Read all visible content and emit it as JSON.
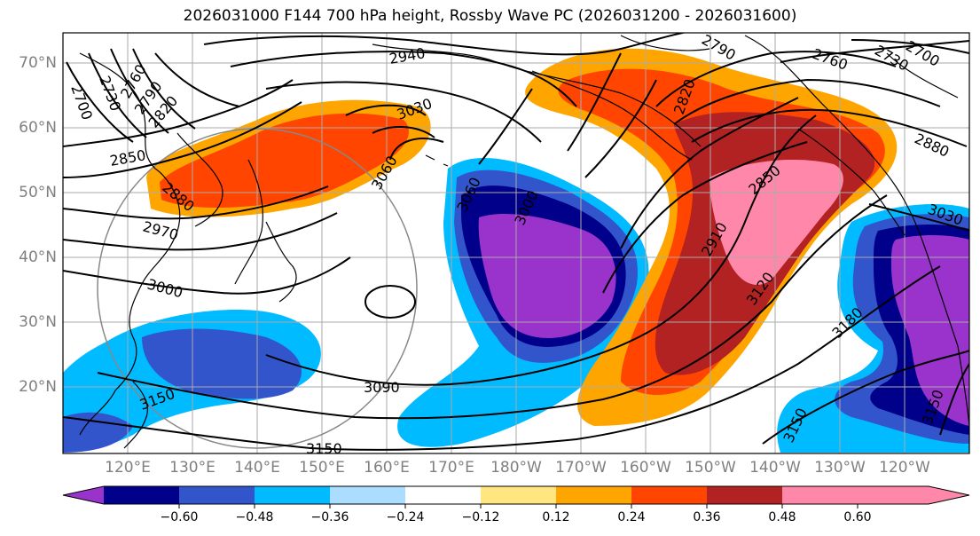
{
  "title": "2026031000 F144 700 hPa height, Rossby Wave PC (2026031200 - 2026031600)",
  "lat_labels": [
    "70°N",
    "60°N",
    "50°N",
    "40°N",
    "30°N",
    "20°N"
  ],
  "lon_labels": [
    "120°E",
    "130°E",
    "140°E",
    "150°E",
    "160°E",
    "170°E",
    "180°W",
    "170°W",
    "160°W",
    "150°W",
    "140°W",
    "130°W",
    "120°W"
  ],
  "contour_labels": [
    "2700",
    "2730",
    "2760",
    "2790",
    "2820",
    "2850",
    "2880",
    "2970",
    "3000",
    "3060",
    "3030",
    "2940",
    "2790",
    "2760",
    "2730",
    "2700",
    "2820",
    "2880",
    "3030",
    "3090",
    "3150",
    "3150",
    "3150",
    "3180",
    "3120",
    "2910",
    "2850",
    "3000",
    "3060",
    "3150"
  ],
  "colorbar": {
    "ticks": [
      "−0.60",
      "−0.48",
      "−0.36",
      "−0.24",
      "−0.12",
      "0.12",
      "0.24",
      "0.36",
      "0.48",
      "0.60"
    ],
    "colors": [
      "#9933cc",
      "#00008b",
      "#3355cc",
      "#00bbff",
      "#aaddff",
      "#ffffff",
      "#ffe680",
      "#ffa500",
      "#ff4500",
      "#b22222",
      "#ff88aa"
    ]
  }
}
